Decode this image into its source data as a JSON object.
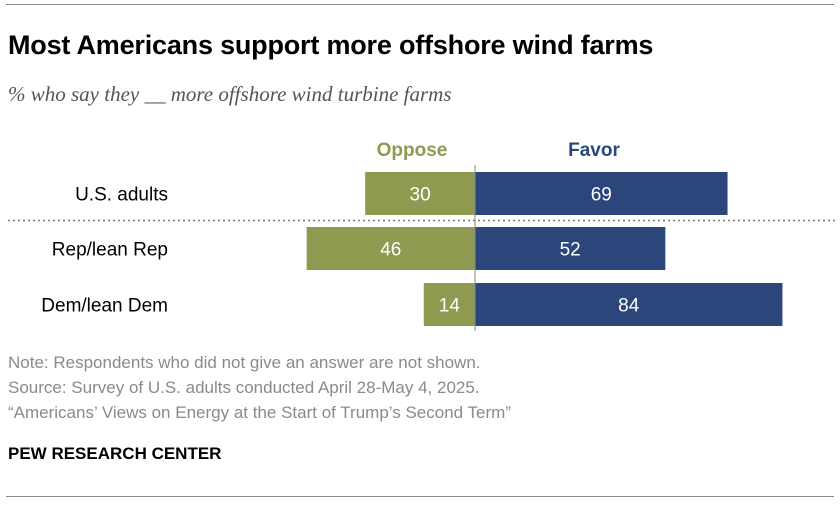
{
  "title": "Most Americans support more offshore wind farms",
  "subtitle": "% who say they __ more offshore wind turbine farms",
  "colors": {
    "oppose": "#8f9a50",
    "favor": "#2b467a",
    "divider": "#8a8a8a",
    "label_text": "#ffffff"
  },
  "chart_data": {
    "type": "bar",
    "orientation": "horizontal-diverging",
    "categories": [
      "U.S. adults",
      "Rep/lean Rep",
      "Dem/lean Dem"
    ],
    "series": [
      {
        "name": "Oppose",
        "values": [
          30,
          46,
          14
        ]
      },
      {
        "name": "Favor",
        "values": [
          69,
          52,
          84
        ]
      }
    ],
    "legend": [
      "Oppose",
      "Favor"
    ],
    "separator_after_category": 0
  },
  "notes": [
    "Note: Respondents who did not give an answer are not shown.",
    "Source: Survey of U.S. adults conducted April 28-May 4, 2025.",
    "“Americans’ Views on Energy at the Start of Trump’s Second Term”"
  ],
  "brand": "PEW RESEARCH CENTER"
}
